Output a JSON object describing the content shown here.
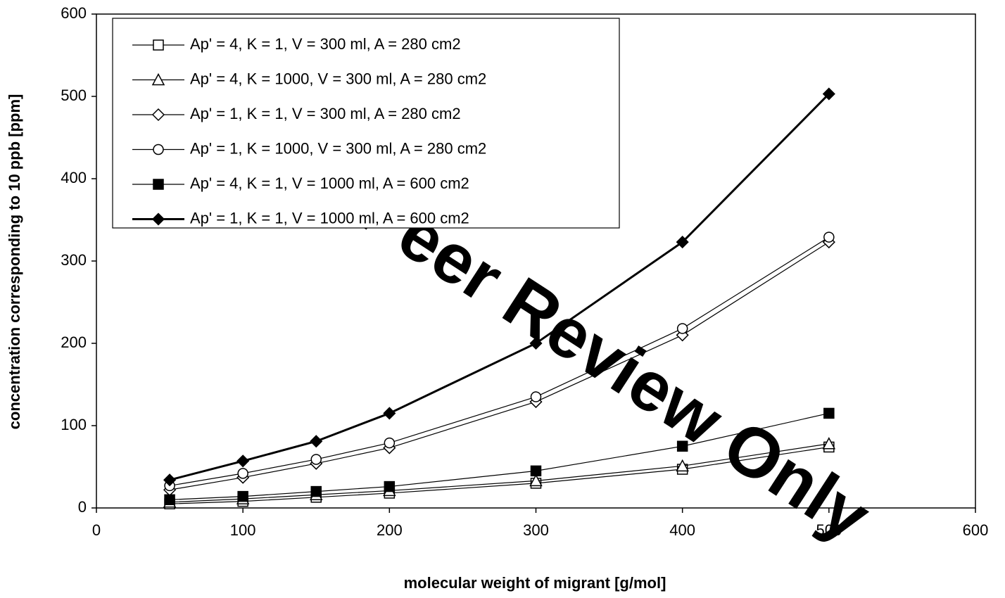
{
  "chart_data": {
    "type": "line",
    "xlabel": "molecular weight of migrant [g/mol]",
    "ylabel": "concentration corresponding to 10 ppb [ppm]",
    "watermark": "For Peer Review Only",
    "x": [
      50,
      100,
      150,
      200,
      300,
      400,
      500
    ],
    "xlim": [
      0,
      600
    ],
    "xticks": [
      0,
      100,
      200,
      300,
      400,
      500,
      600
    ],
    "ylim": [
      0,
      600
    ],
    "yticks": [
      0,
      100,
      200,
      300,
      400,
      500,
      600
    ],
    "legend": "upper left",
    "series": [
      {
        "name": "Ap' = 4, K = 1, V = 300 ml, A = 280 cm2",
        "color": "#000000",
        "marker": "square",
        "filled": false,
        "values": [
          5,
          8,
          13,
          18,
          30,
          47,
          74
        ]
      },
      {
        "name": "Ap' = 4, K = 1000, V = 300 ml, A = 280 cm2",
        "color": "#000000",
        "marker": "triangle",
        "filled": false,
        "values": [
          7,
          11,
          16,
          21,
          33,
          51,
          78
        ]
      },
      {
        "name": "Ap' = 1, K = 1, V = 300 ml, A = 280 cm2",
        "color": "#000000",
        "marker": "diamond",
        "filled": false,
        "values": [
          22,
          37,
          54,
          73,
          129,
          210,
          323
        ]
      },
      {
        "name": "Ap' = 1, K = 1000, V = 300 ml, A = 280 cm2",
        "color": "#000000",
        "marker": "circle",
        "filled": false,
        "values": [
          27,
          42,
          59,
          79,
          135,
          218,
          329
        ]
      },
      {
        "name": "Ap' = 4, K = 1, V = 1000 ml, A = 600 cm2",
        "color": "#000000",
        "marker": "square",
        "filled": true,
        "values": [
          10,
          14,
          20,
          26,
          45,
          75,
          115
        ]
      },
      {
        "name": "Ap' = 1, K = 1, V = 1000 ml, A = 600 cm2",
        "color": "#000000",
        "marker": "diamond",
        "filled": true,
        "bold": true,
        "values": [
          34,
          57,
          81,
          115,
          200,
          323,
          503
        ]
      }
    ]
  }
}
